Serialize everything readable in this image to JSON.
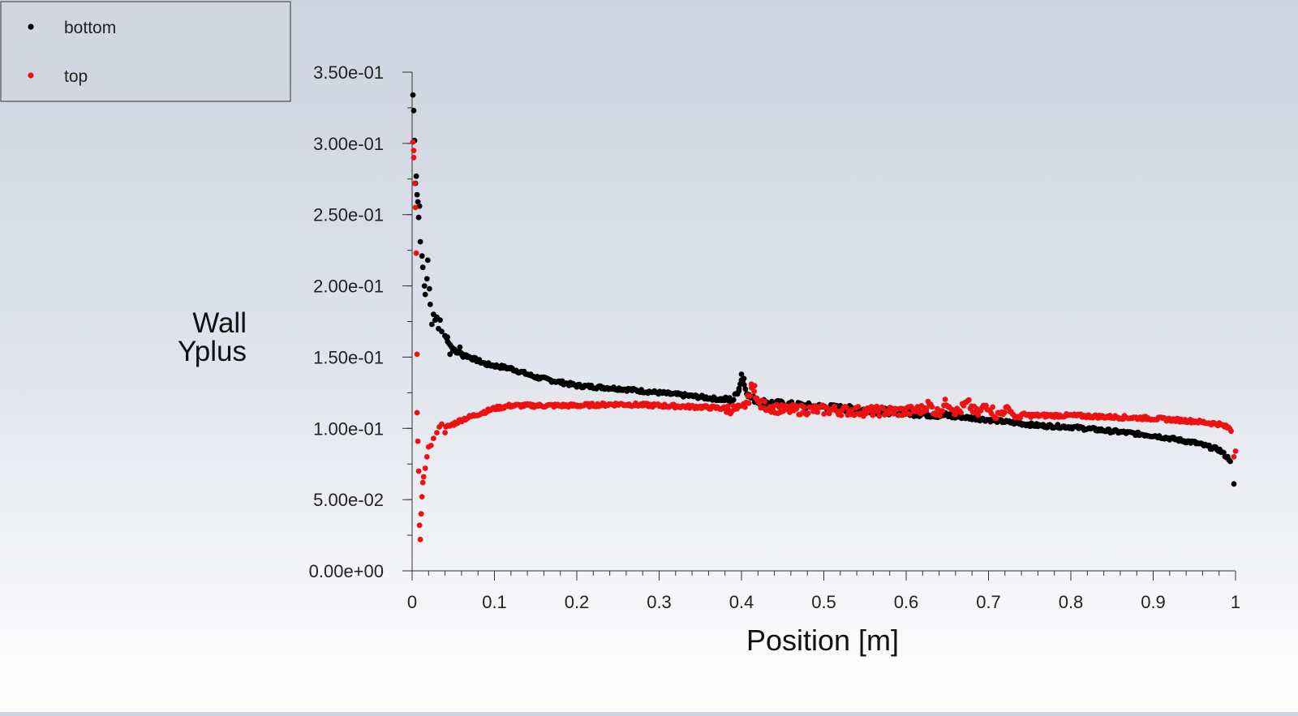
{
  "chart_data": {
    "type": "scatter",
    "title": "",
    "xlabel": "Position [m]",
    "ylabel_lines": [
      "Wall",
      "Yplus"
    ],
    "xlim": [
      0,
      1
    ],
    "ylim": [
      0,
      0.35
    ],
    "x_ticks": [
      {
        "value": 0,
        "label": "0"
      },
      {
        "value": 0.1,
        "label": "0.1"
      },
      {
        "value": 0.2,
        "label": "0.2"
      },
      {
        "value": 0.3,
        "label": "0.3"
      },
      {
        "value": 0.4,
        "label": "0.4"
      },
      {
        "value": 0.5,
        "label": "0.5"
      },
      {
        "value": 0.6,
        "label": "0.6"
      },
      {
        "value": 0.7,
        "label": "0.7"
      },
      {
        "value": 0.8,
        "label": "0.8"
      },
      {
        "value": 0.9,
        "label": "0.9"
      },
      {
        "value": 1,
        "label": "1"
      }
    ],
    "y_ticks": [
      {
        "value": 0,
        "label": "0.00e+00"
      },
      {
        "value": 0.05,
        "label": "5.00e-02"
      },
      {
        "value": 0.1,
        "label": "1.00e-01"
      },
      {
        "value": 0.15,
        "label": "1.50e-01"
      },
      {
        "value": 0.2,
        "label": "2.00e-01"
      },
      {
        "value": 0.25,
        "label": "2.50e-01"
      },
      {
        "value": 0.3,
        "label": "3.00e-01"
      },
      {
        "value": 0.35,
        "label": "3.50e-01"
      }
    ],
    "x_minor_step": 0.02,
    "y_minor_step": 0.025,
    "legend_position": "top-left",
    "series": [
      {
        "name": "bottom",
        "color": "#000000",
        "profile": [
          [
            0,
            0.334
          ],
          [
            0.002,
            0.322
          ],
          [
            0.004,
            0.3
          ],
          [
            0.006,
            0.277
          ],
          [
            0.008,
            0.26
          ],
          [
            0.01,
            0.245
          ],
          [
            0.013,
            0.225
          ],
          [
            0.016,
            0.21
          ],
          [
            0.02,
            0.195
          ],
          [
            0.025,
            0.18
          ],
          [
            0.03,
            0.175
          ],
          [
            0.04,
            0.165
          ],
          [
            0.05,
            0.155
          ],
          [
            0.07,
            0.15
          ],
          [
            0.09,
            0.145
          ],
          [
            0.12,
            0.142
          ],
          [
            0.15,
            0.136
          ],
          [
            0.2,
            0.13
          ],
          [
            0.25,
            0.128
          ],
          [
            0.3,
            0.125
          ],
          [
            0.35,
            0.122
          ],
          [
            0.38,
            0.12
          ],
          [
            0.39,
            0.12
          ],
          [
            0.397,
            0.128
          ],
          [
            0.4,
            0.135
          ],
          [
            0.405,
            0.128
          ],
          [
            0.41,
            0.122
          ],
          [
            0.42,
            0.119
          ],
          [
            0.45,
            0.117
          ],
          [
            0.5,
            0.115
          ],
          [
            0.55,
            0.113
          ],
          [
            0.6,
            0.111
          ],
          [
            0.65,
            0.109
          ],
          [
            0.7,
            0.106
          ],
          [
            0.76,
            0.102
          ],
          [
            0.8,
            0.101
          ],
          [
            0.85,
            0.098
          ],
          [
            0.9,
            0.095
          ],
          [
            0.95,
            0.09
          ],
          [
            0.98,
            0.085
          ],
          [
            0.995,
            0.077
          ],
          [
            0.998,
            0.06
          ]
        ],
        "points": [
          [
            0.001,
            0.334
          ],
          [
            0.002,
            0.323
          ],
          [
            0.003,
            0.302
          ],
          [
            0.004,
            0.272
          ],
          [
            0.005,
            0.277
          ],
          [
            0.006,
            0.264
          ],
          [
            0.007,
            0.259
          ],
          [
            0.008,
            0.248
          ],
          [
            0.009,
            0.256
          ],
          [
            0.01,
            0.231
          ],
          [
            0.012,
            0.221
          ],
          [
            0.013,
            0.213
          ],
          [
            0.015,
            0.2
          ],
          [
            0.016,
            0.194
          ],
          [
            0.018,
            0.205
          ],
          [
            0.019,
            0.218
          ],
          [
            0.021,
            0.198
          ],
          [
            0.022,
            0.187
          ],
          [
            0.024,
            0.173
          ],
          [
            0.026,
            0.18
          ],
          [
            0.028,
            0.176
          ],
          [
            0.03,
            0.178
          ],
          [
            0.032,
            0.17
          ],
          [
            0.034,
            0.176
          ],
          [
            0.036,
            0.168
          ],
          [
            0.04,
            0.165
          ],
          [
            0.043,
            0.164
          ],
          [
            0.046,
            0.152
          ],
          [
            0.05,
            0.156
          ],
          [
            0.054,
            0.153
          ],
          [
            0.058,
            0.157
          ],
          [
            0.062,
            0.15
          ],
          [
            0.397,
            0.128
          ],
          [
            0.4,
            0.138
          ],
          [
            0.403,
            0.135
          ],
          [
            0.998,
            0.061
          ]
        ]
      },
      {
        "name": "top",
        "color": "#ee1111",
        "profile": [
          [
            0.001,
            0.298
          ],
          [
            0.003,
            0.27
          ],
          [
            0.005,
            0.223
          ],
          [
            0.007,
            0.152
          ],
          [
            0.008,
            0.111
          ],
          [
            0.009,
            0.07
          ],
          [
            0.01,
            0.032
          ],
          [
            0.011,
            0.022
          ],
          [
            0.013,
            0.055
          ],
          [
            0.015,
            0.065
          ],
          [
            0.018,
            0.075
          ],
          [
            0.02,
            0.085
          ],
          [
            0.025,
            0.09
          ],
          [
            0.03,
            0.098
          ],
          [
            0.04,
            0.1
          ],
          [
            0.05,
            0.103
          ],
          [
            0.06,
            0.106
          ],
          [
            0.08,
            0.11
          ],
          [
            0.1,
            0.114
          ],
          [
            0.12,
            0.116
          ],
          [
            0.15,
            0.116
          ],
          [
            0.2,
            0.116
          ],
          [
            0.25,
            0.117
          ],
          [
            0.3,
            0.116
          ],
          [
            0.35,
            0.115
          ],
          [
            0.38,
            0.114
          ],
          [
            0.4,
            0.113
          ],
          [
            0.41,
            0.122
          ],
          [
            0.415,
            0.13
          ],
          [
            0.42,
            0.117
          ],
          [
            0.45,
            0.113
          ],
          [
            0.5,
            0.113
          ],
          [
            0.55,
            0.112
          ],
          [
            0.6,
            0.112
          ],
          [
            0.65,
            0.115
          ],
          [
            0.7,
            0.113
          ],
          [
            0.75,
            0.109
          ],
          [
            0.76,
            0.109
          ],
          [
            0.8,
            0.109
          ],
          [
            0.85,
            0.108
          ],
          [
            0.9,
            0.107
          ],
          [
            0.95,
            0.105
          ],
          [
            0.98,
            0.103
          ],
          [
            0.993,
            0.1
          ],
          [
            0.998,
            0.095
          ],
          [
            1.0,
            0.083
          ]
        ],
        "points": [
          [
            0.001,
            0.301
          ],
          [
            0.002,
            0.295
          ],
          [
            0.002,
            0.29
          ],
          [
            0.003,
            0.272
          ],
          [
            0.004,
            0.255
          ],
          [
            0.005,
            0.223
          ],
          [
            0.006,
            0.152
          ],
          [
            0.006,
            0.111
          ],
          [
            0.007,
            0.091
          ],
          [
            0.008,
            0.07
          ],
          [
            0.009,
            0.032
          ],
          [
            0.01,
            0.022
          ],
          [
            0.011,
            0.04
          ],
          [
            0.012,
            0.052
          ],
          [
            0.013,
            0.062
          ],
          [
            0.014,
            0.066
          ],
          [
            0.016,
            0.072
          ],
          [
            0.018,
            0.08
          ],
          [
            0.02,
            0.087
          ],
          [
            0.023,
            0.088
          ],
          [
            0.026,
            0.093
          ],
          [
            0.03,
            0.097
          ],
          [
            0.033,
            0.101
          ],
          [
            0.036,
            0.103
          ],
          [
            0.04,
            0.097
          ],
          [
            0.043,
            0.102
          ],
          [
            0.408,
            0.123
          ],
          [
            0.412,
            0.131
          ],
          [
            0.416,
            0.13
          ],
          [
            0.419,
            0.12
          ],
          [
            0.998,
            0.08
          ],
          [
            1.0,
            0.084
          ]
        ]
      }
    ]
  }
}
